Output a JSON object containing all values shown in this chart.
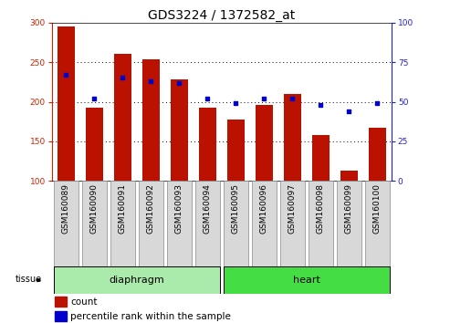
{
  "title": "GDS3224 / 1372582_at",
  "samples": [
    "GSM160089",
    "GSM160090",
    "GSM160091",
    "GSM160092",
    "GSM160093",
    "GSM160094",
    "GSM160095",
    "GSM160096",
    "GSM160097",
    "GSM160098",
    "GSM160099",
    "GSM160100"
  ],
  "count_values": [
    295,
    192,
    260,
    254,
    228,
    192,
    177,
    196,
    210,
    158,
    113,
    167
  ],
  "percentile_values": [
    67,
    52,
    65,
    63,
    62,
    52,
    49,
    52,
    52,
    48,
    44,
    49
  ],
  "ylim_left": [
    100,
    300
  ],
  "ylim_right": [
    0,
    100
  ],
  "yticks_left": [
    100,
    150,
    200,
    250,
    300
  ],
  "yticks_right": [
    0,
    25,
    50,
    75,
    100
  ],
  "tissue_groups": [
    {
      "label": "diaphragm",
      "start": 0,
      "end": 5,
      "color": "#aaeaaa"
    },
    {
      "label": "heart",
      "start": 6,
      "end": 11,
      "color": "#44dd44"
    }
  ],
  "bar_color": "#bb1100",
  "marker_color": "#0000cc",
  "axis_color_left": "#cc2200",
  "axis_color_right": "#2222cc",
  "title_fontsize": 10,
  "tick_fontsize": 6.5,
  "label_fontsize": 7.5,
  "legend_fontsize": 7.5
}
